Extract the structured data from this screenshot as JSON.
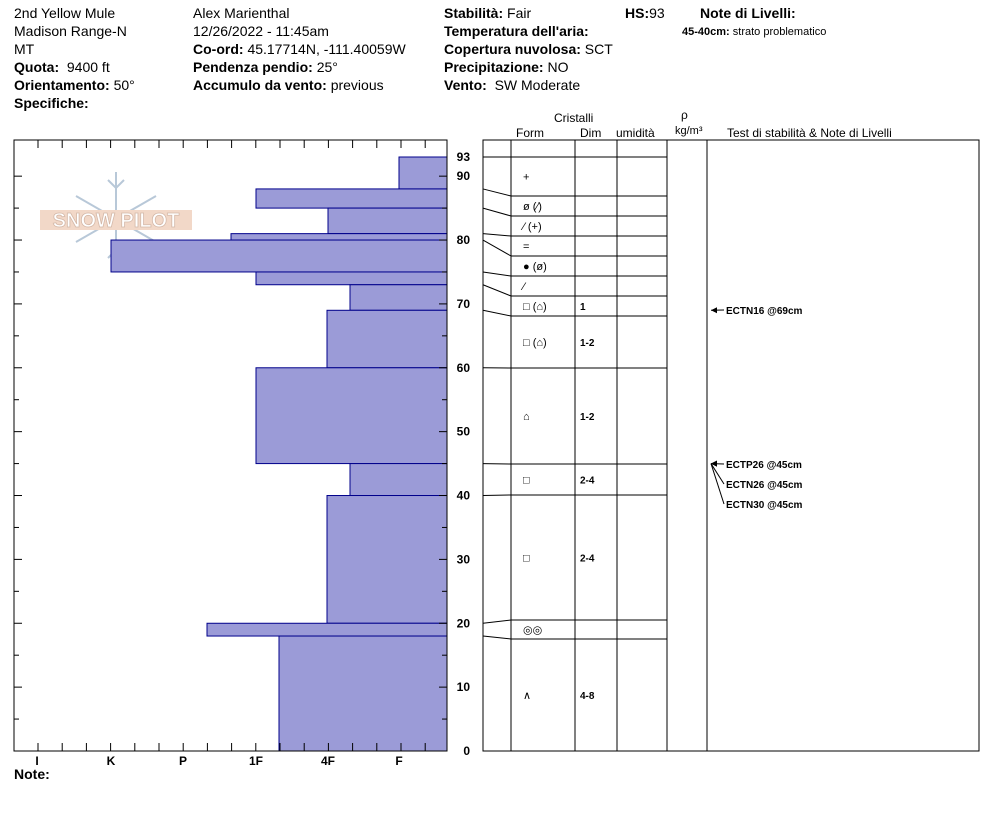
{
  "header": {
    "col1": {
      "location": "2nd Yellow Mule",
      "range": "Madison Range-N",
      "state": "MT",
      "quota_label": "Quota:",
      "quota_value": "9400 ft",
      "orient_label": "Orientamento:",
      "orient_value": "50°",
      "spec_label": "Specifiche:"
    },
    "col2": {
      "observer": "Alex Marienthal",
      "datetime": "12/26/2022 - 11:45am",
      "coord_label": "Co-ord:",
      "coord_value": "45.17714N, -111.40059W",
      "slope_label": "Pendenza pendio:",
      "slope_value": "25°",
      "wind_load_label": "Accumulo da vento:",
      "wind_load_value": "previous"
    },
    "col3": {
      "stability_label": "Stabilità:",
      "stability_value": "Fair",
      "air_temp_label": "Temperatura dell'aria:",
      "cloud_label": "Copertura nuvolosa:",
      "cloud_value": "SCT",
      "precip_label": "Precipitazione:",
      "precip_value": "NO",
      "wind_label": "Vento:",
      "wind_value": "SW Moderate"
    },
    "hs_label": "HS:",
    "hs_value": "93",
    "layer_notes_label": "Note di Livelli:",
    "layer_note_range": "45-40cm:",
    "layer_note_text": "strato problematico"
  },
  "note_label": "Note:",
  "logo_text": "SNOW PILOT",
  "table_headers": {
    "cristalli": "Cristalli",
    "form": "Form",
    "dim": "Dim",
    "umidita": "umidità",
    "rho": "ρ",
    "density_unit": "kg/m³",
    "tests": "Test di stabilità & Note di Livelli"
  },
  "colors": {
    "bar_fill": "#9b9bd7",
    "bar_stroke": "#00008b",
    "line": "#000000"
  },
  "chart_data": {
    "type": "bar",
    "orientation": "horizontal",
    "description_axis_y": "snow height (cm)",
    "ylim": [
      0,
      93
    ],
    "y_ticks": [
      0,
      10,
      20,
      30,
      40,
      50,
      60,
      70,
      80,
      90,
      93
    ],
    "x_categories": [
      "I",
      "K",
      "P",
      "1F",
      "4F",
      "F"
    ],
    "hardness_layers": [
      {
        "bottom": 88,
        "top": 93,
        "hardness": 0.5
      },
      {
        "bottom": 85,
        "top": 88,
        "hardness": 0.05
      },
      {
        "bottom": 81,
        "top": 85,
        "hardness": 2.75
      },
      {
        "bottom": 80,
        "top": 81,
        "hardness": 0.05
      },
      {
        "bottom": 75,
        "top": 80,
        "hardness": 0.05
      },
      {
        "bottom": 73,
        "top": 75,
        "hardness": 1.5
      },
      {
        "bottom": 69,
        "top": 73,
        "hardness": 1.5
      },
      {
        "bottom": 60,
        "top": 69,
        "hardness": 1.5
      },
      {
        "bottom": 45,
        "top": 60,
        "hardness": 2.25
      },
      {
        "bottom": 40,
        "top": 45,
        "hardness": 1.75
      },
      {
        "bottom": 20,
        "top": 40,
        "hardness": 1.75
      },
      {
        "bottom": 18,
        "top": 20,
        "hardness": 3.25
      },
      {
        "bottom": 0,
        "top": 18,
        "hardness": 2.3
      }
    ],
    "bar_widths_desc": "hardness index in units of scale position from right (0=F end ... 5=I)",
    "layers": [
      {
        "top": 93,
        "bottom": 88,
        "form": "+",
        "dim": ""
      },
      {
        "top": 88,
        "bottom": 85,
        "form": "ø (⁄)",
        "dim": ""
      },
      {
        "top": 85,
        "bottom": 81,
        "form": "⁄ (+)",
        "dim": ""
      },
      {
        "top": 81,
        "bottom": 80,
        "form": "=",
        "dim": ""
      },
      {
        "top": 80,
        "bottom": 75,
        "form": "● (ø)",
        "dim": ""
      },
      {
        "top": 75,
        "bottom": 73,
        "form": "⁄",
        "dim": ""
      },
      {
        "top": 73,
        "bottom": 69,
        "form": "□ (⌂)",
        "dim": "1"
      },
      {
        "top": 69,
        "bottom": 60,
        "form": "□ (⌂)",
        "dim": "1-2"
      },
      {
        "top": 60,
        "bottom": 45,
        "form": "⌂",
        "dim": "1-2"
      },
      {
        "top": 45,
        "bottom": 40,
        "form": "□",
        "dim": "2-4"
      },
      {
        "top": 40,
        "bottom": 20,
        "form": "□",
        "dim": "2-4"
      },
      {
        "top": 20,
        "bottom": 18,
        "form": "◎◎",
        "dim": ""
      },
      {
        "top": 18,
        "bottom": 0,
        "form": "∧",
        "dim": "4-8"
      }
    ],
    "tests": [
      {
        "depth": 69,
        "label": "ECTN16 @69cm"
      },
      {
        "depth": 45,
        "label": "ECTP26 @45cm"
      },
      {
        "depth": 45,
        "label": "ECTN26 @45cm"
      },
      {
        "depth": 45,
        "label": "ECTN30 @45cm"
      }
    ]
  }
}
